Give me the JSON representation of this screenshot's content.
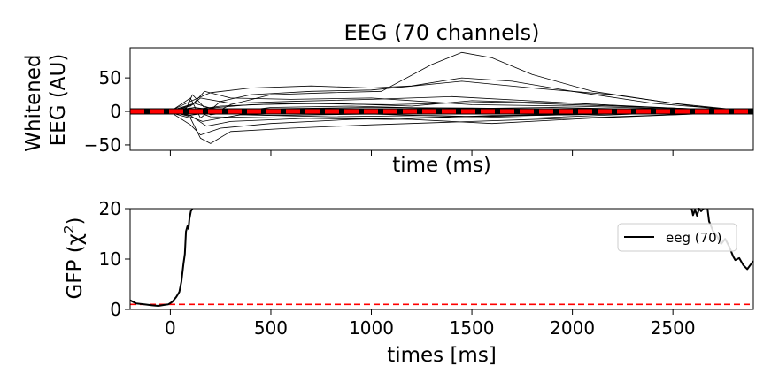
{
  "chart_data": [
    {
      "type": "line",
      "title": "EEG (70 channels)",
      "xlabel": "time (ms)",
      "ylabel_lines": [
        "Whitened",
        "EEG (AU)"
      ],
      "xlim": [
        -200,
        2900
      ],
      "ylim": [
        -58,
        95
      ],
      "xticks": [
        0,
        500,
        1000,
        1500,
        2000,
        2500
      ],
      "xtick_labels_visible": false,
      "yticks": [
        50,
        0,
        -50
      ],
      "ytick_labels": [
        "50",
        "0",
        "−50"
      ],
      "n_channels": 70,
      "channel_color": "#000000",
      "reference_line": {
        "y": 0,
        "color": "#ff0000",
        "style": "dashed"
      },
      "traces": [
        {
          "x": [
            -200,
            0,
            80,
            110,
            150,
            200,
            300,
            500,
            800,
            1050,
            1300,
            1450,
            1600,
            1800,
            2100,
            2500,
            2900
          ],
          "values": [
            0,
            0,
            5,
            25,
            12,
            -5,
            10,
            25,
            28,
            30,
            70,
            88,
            80,
            55,
            30,
            12,
            0
          ]
        },
        {
          "x": [
            -200,
            0,
            100,
            200,
            400,
            700,
            1000,
            1200,
            1450,
            1700,
            2000,
            2400,
            2900
          ],
          "values": [
            0,
            1,
            15,
            28,
            35,
            38,
            35,
            38,
            50,
            45,
            30,
            12,
            0
          ]
        },
        {
          "x": [
            -200,
            0,
            100,
            150,
            250,
            400,
            700,
            1000,
            1450,
            1800,
            2200,
            2600,
            2900
          ],
          "values": [
            0,
            0,
            20,
            -10,
            15,
            25,
            30,
            32,
            45,
            35,
            25,
            8,
            0
          ]
        },
        {
          "x": [
            -200,
            0,
            100,
            150,
            200,
            300,
            600,
            1000,
            1500,
            2000,
            2500,
            2900
          ],
          "values": [
            0,
            -2,
            -10,
            -40,
            -48,
            -30,
            -25,
            -20,
            -15,
            -10,
            -5,
            0
          ]
        },
        {
          "x": [
            -200,
            0,
            100,
            150,
            250,
            500,
            900,
            1400,
            2000,
            2500,
            2900
          ],
          "values": [
            0,
            -1,
            -20,
            -35,
            -25,
            -18,
            -12,
            -8,
            -5,
            -3,
            0
          ]
        },
        {
          "x": [
            -200,
            0,
            100,
            150,
            300,
            600,
            1000,
            1400,
            1900,
            2400,
            2900
          ],
          "values": [
            0,
            0,
            8,
            20,
            12,
            15,
            18,
            22,
            14,
            6,
            0
          ]
        },
        {
          "x": [
            -200,
            0,
            100,
            180,
            300,
            700,
            1200,
            1600,
            2100,
            2600,
            2900
          ],
          "values": [
            0,
            0,
            -6,
            -22,
            -15,
            -10,
            -12,
            -18,
            -10,
            -4,
            0
          ]
        },
        {
          "x": [
            -200,
            0,
            120,
            200,
            400,
            800,
            1200,
            1500,
            2000,
            2500,
            2900
          ],
          "values": [
            0,
            1,
            12,
            5,
            10,
            12,
            8,
            16,
            12,
            5,
            0
          ]
        },
        {
          "x": [
            -200,
            0,
            100,
            160,
            350,
            800,
            1300,
            1800,
            2300,
            2900
          ],
          "values": [
            0,
            0,
            -8,
            -15,
            -5,
            -8,
            -6,
            -10,
            -4,
            0
          ]
        },
        {
          "x": [
            -200,
            0,
            110,
            170,
            300,
            600,
            1000,
            1500,
            2000,
            2500,
            2900
          ],
          "values": [
            0,
            0,
            10,
            30,
            20,
            18,
            20,
            10,
            8,
            4,
            0
          ]
        },
        {
          "x": [
            -200,
            0,
            100,
            200,
            500,
            900,
            1400,
            1900,
            2400,
            2900
          ],
          "values": [
            0,
            0,
            5,
            -5,
            6,
            8,
            4,
            6,
            3,
            0
          ]
        },
        {
          "x": [
            -200,
            0,
            100,
            180,
            400,
            900,
            1400,
            1900,
            2400,
            2900
          ],
          "values": [
            0,
            0,
            -4,
            6,
            -3,
            -4,
            -2,
            -5,
            -2,
            0
          ]
        },
        {
          "x": [
            -200,
            0,
            120,
            220,
            500,
            1000,
            1500,
            2000,
            2500,
            2900
          ],
          "values": [
            0,
            0,
            6,
            2,
            4,
            6,
            5,
            3,
            2,
            0
          ]
        },
        {
          "x": [
            -200,
            0,
            90,
            200,
            500,
            1000,
            1500,
            2000,
            2500,
            2900
          ],
          "values": [
            0,
            0,
            -6,
            -2,
            -6,
            -4,
            -8,
            -5,
            -2,
            0
          ]
        },
        {
          "x": [
            -200,
            0,
            100,
            200,
            600,
            1100,
            1600,
            2100,
            2600,
            2900
          ],
          "values": [
            0,
            0,
            3,
            -8,
            -10,
            -12,
            -6,
            -4,
            -2,
            0
          ]
        },
        {
          "x": [
            -200,
            0,
            100,
            250,
            600,
            1100,
            1600,
            2100,
            2600,
            2900
          ],
          "values": [
            0,
            0,
            2,
            8,
            12,
            10,
            14,
            9,
            4,
            0
          ]
        }
      ],
      "mean_line": {
        "y": 0,
        "color": "#ff0000",
        "style": "dashed"
      }
    },
    {
      "type": "line",
      "title": "",
      "xlabel": "times [ms]",
      "ylabel": "GFP (χ²)",
      "ylabel_parts": {
        "prefix": "GFP (",
        "symbol": "χ",
        "superscript": "2",
        "suffix": ")"
      },
      "xlim": [
        -200,
        2900
      ],
      "ylim": [
        0,
        20
      ],
      "xticks": [
        0,
        500,
        1000,
        1500,
        2000,
        2500
      ],
      "xtick_labels": [
        "0",
        "500",
        "1000",
        "1500",
        "2000",
        "2500"
      ],
      "yticks": [
        0,
        10,
        20
      ],
      "ytick_labels": [
        "0",
        "10",
        "20"
      ],
      "series": [
        {
          "name": "eeg (70)",
          "color": "#000000",
          "segments": [
            {
              "x": [
                -200,
                -170,
                -130,
                -90,
                -60,
                -30,
                -10,
                10,
                30,
                45,
                55,
                65,
                72,
                78,
                85,
                90,
                95,
                102,
                110
              ],
              "values": [
                1.8,
                1.2,
                1.0,
                0.8,
                0.7,
                0.9,
                1.0,
                1.5,
                2.5,
                3.5,
                5.5,
                9.0,
                11.0,
                15.5,
                16.5,
                16.0,
                18.0,
                19.5,
                20
              ]
            },
            {
              "x": [
                2593,
                2600,
                2610,
                2620,
                2630,
                2640,
                2652
              ],
              "values": [
                20,
                18.7,
                19.8,
                18.6,
                20,
                19.5,
                20
              ]
            },
            {
              "x": [
                2672,
                2680,
                2700,
                2720,
                2740,
                2760,
                2780,
                2800,
                2810,
                2830,
                2850,
                2870,
                2885,
                2900
              ],
              "values": [
                20,
                17.5,
                15.5,
                14.5,
                13.0,
                14.0,
                12.5,
                10.5,
                9.8,
                10.2,
                8.8,
                8.0,
                8.8,
                9.6
              ]
            }
          ]
        }
      ],
      "reference_line": {
        "y": 1,
        "color": "#ff0000",
        "style": "dashed"
      },
      "legend": {
        "placement": "right",
        "entries": [
          "eeg (70)"
        ]
      }
    }
  ]
}
